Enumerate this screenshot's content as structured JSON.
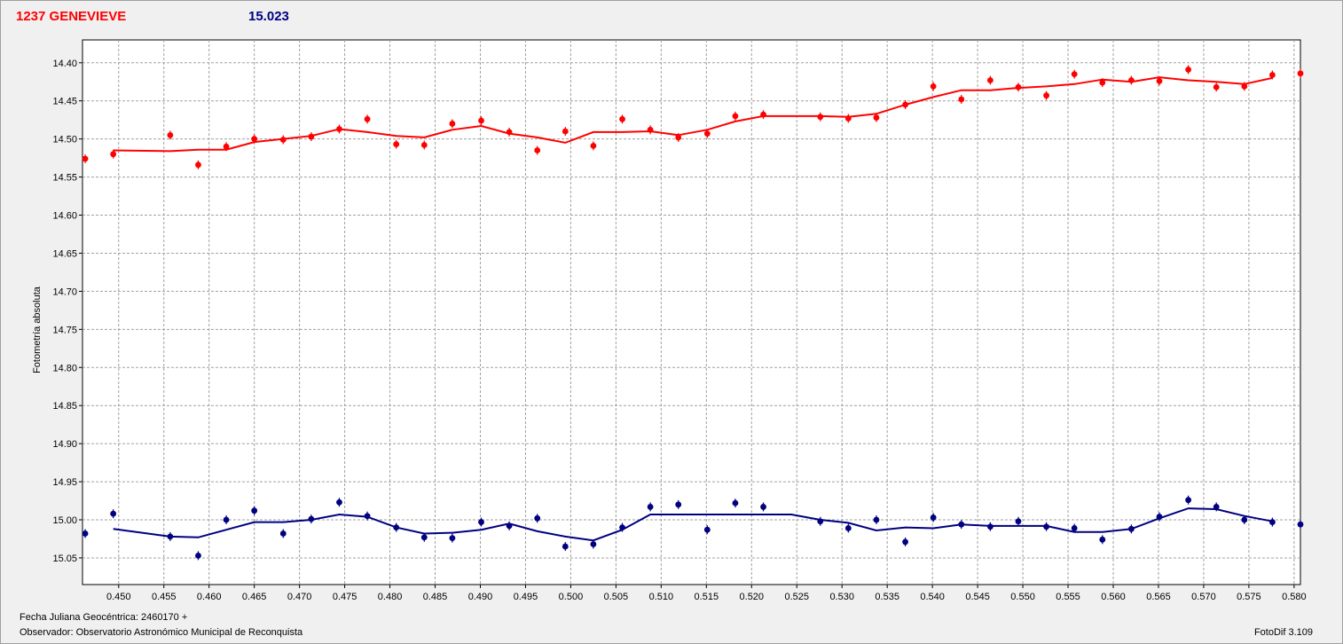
{
  "header": {
    "object_name": "1237 GENEVIEVE",
    "reference_mag": "15.023"
  },
  "footer": {
    "date_label": "Fecha Juliana Geocéntrica: 2460170 +",
    "observer": "Observador: Observatorio Astronómico Municipal de Reconquista",
    "software": "FotoDif 3.109"
  },
  "colors": {
    "series_red": "#ff0000",
    "series_blue": "#000080",
    "grid": "#a0a0a0",
    "plot_bg": "#ffffff"
  },
  "chart_data": {
    "type": "scatter",
    "ylabel": "Fotometría absoluta",
    "xlabel": "",
    "xlim": [
      0.446,
      0.5807
    ],
    "ylim": [
      14.37,
      15.085
    ],
    "y_inverted": true,
    "grid": true,
    "x_ticks": [
      "0.450",
      "0.455",
      "0.460",
      "0.465",
      "0.470",
      "0.475",
      "0.480",
      "0.485",
      "0.490",
      "0.495",
      "0.500",
      "0.505",
      "0.510",
      "0.515",
      "0.520",
      "0.525",
      "0.530",
      "0.535",
      "0.540",
      "0.545",
      "0.550",
      "0.555",
      "0.560",
      "0.565",
      "0.570",
      "0.575",
      "0.580"
    ],
    "y_ticks": [
      "14.40",
      "14.45",
      "14.50",
      "14.55",
      "14.60",
      "14.65",
      "14.70",
      "14.75",
      "14.80",
      "14.85",
      "14.90",
      "14.95",
      "15.00",
      "15.05"
    ],
    "series": [
      {
        "color": "#ff0000",
        "points": [
          [
            0.4463,
            14.526
          ],
          [
            0.4494,
            14.52
          ],
          [
            0.4557,
            14.495
          ],
          [
            0.4588,
            14.534
          ],
          [
            0.4619,
            14.51
          ],
          [
            0.465,
            14.5
          ],
          [
            0.4682,
            14.501
          ],
          [
            0.4713,
            14.497
          ],
          [
            0.4744,
            14.487
          ],
          [
            0.4775,
            14.474
          ],
          [
            0.4807,
            14.507
          ],
          [
            0.4838,
            14.508
          ],
          [
            0.4869,
            14.48
          ],
          [
            0.4901,
            14.476
          ],
          [
            0.4932,
            14.491
          ],
          [
            0.4963,
            14.515
          ],
          [
            0.4994,
            14.49
          ],
          [
            0.5025,
            14.509
          ],
          [
            0.5057,
            14.474
          ],
          [
            0.5088,
            14.488
          ],
          [
            0.5119,
            14.498
          ],
          [
            0.5151,
            14.493
          ],
          [
            0.5182,
            14.47
          ],
          [
            0.5213,
            14.468
          ],
          [
            0.5276,
            14.471
          ],
          [
            0.5307,
            14.473
          ],
          [
            0.5338,
            14.472
          ],
          [
            0.537,
            14.455
          ],
          [
            0.5401,
            14.431
          ],
          [
            0.5432,
            14.448
          ],
          [
            0.5464,
            14.423
          ],
          [
            0.5495,
            14.432
          ],
          [
            0.5526,
            14.443
          ],
          [
            0.5557,
            14.415
          ],
          [
            0.5588,
            14.426
          ],
          [
            0.562,
            14.423
          ],
          [
            0.5651,
            14.424
          ],
          [
            0.5683,
            14.409
          ],
          [
            0.5714,
            14.432
          ],
          [
            0.5745,
            14.431
          ],
          [
            0.5776,
            14.416
          ],
          [
            0.5807,
            14.414
          ]
        ],
        "fit": [
          [
            0.4494,
            14.515
          ],
          [
            0.4557,
            14.516
          ],
          [
            0.4588,
            14.514
          ],
          [
            0.4619,
            14.514
          ],
          [
            0.465,
            14.504
          ],
          [
            0.4682,
            14.5
          ],
          [
            0.4713,
            14.496
          ],
          [
            0.4744,
            14.487
          ],
          [
            0.4775,
            14.491
          ],
          [
            0.4807,
            14.496
          ],
          [
            0.4838,
            14.498
          ],
          [
            0.4869,
            14.488
          ],
          [
            0.4901,
            14.483
          ],
          [
            0.4932,
            14.493
          ],
          [
            0.4963,
            14.498
          ],
          [
            0.4994,
            14.505
          ],
          [
            0.5025,
            14.491
          ],
          [
            0.5057,
            14.491
          ],
          [
            0.5088,
            14.49
          ],
          [
            0.5119,
            14.495
          ],
          [
            0.5151,
            14.488
          ],
          [
            0.5182,
            14.477
          ],
          [
            0.5213,
            14.47
          ],
          [
            0.5276,
            14.47
          ],
          [
            0.5307,
            14.471
          ],
          [
            0.5338,
            14.467
          ],
          [
            0.537,
            14.455
          ],
          [
            0.5401,
            14.445
          ],
          [
            0.5432,
            14.436
          ],
          [
            0.5464,
            14.436
          ],
          [
            0.5495,
            14.433
          ],
          [
            0.5526,
            14.431
          ],
          [
            0.5557,
            14.428
          ],
          [
            0.5588,
            14.422
          ],
          [
            0.562,
            14.425
          ],
          [
            0.5651,
            14.419
          ],
          [
            0.5683,
            14.423
          ],
          [
            0.5714,
            14.425
          ],
          [
            0.5745,
            14.428
          ],
          [
            0.5776,
            14.42
          ]
        ]
      },
      {
        "color": "#000080",
        "points": [
          [
            0.4463,
            15.018
          ],
          [
            0.4494,
            14.992
          ],
          [
            0.4557,
            15.022
          ],
          [
            0.4588,
            15.047
          ],
          [
            0.4619,
            15.0
          ],
          [
            0.465,
            14.988
          ],
          [
            0.4682,
            15.018
          ],
          [
            0.4713,
            14.999
          ],
          [
            0.4744,
            14.977
          ],
          [
            0.4775,
            14.995
          ],
          [
            0.4807,
            15.01
          ],
          [
            0.4838,
            15.023
          ],
          [
            0.4869,
            15.024
          ],
          [
            0.4901,
            15.003
          ],
          [
            0.4932,
            15.008
          ],
          [
            0.4963,
            14.998
          ],
          [
            0.4994,
            15.035
          ],
          [
            0.5025,
            15.032
          ],
          [
            0.5057,
            15.01
          ],
          [
            0.5088,
            14.983
          ],
          [
            0.5119,
            14.98
          ],
          [
            0.5151,
            15.013
          ],
          [
            0.5182,
            14.978
          ],
          [
            0.5213,
            14.983
          ],
          [
            0.5276,
            15.002
          ],
          [
            0.5307,
            15.011
          ],
          [
            0.5338,
            15.0
          ],
          [
            0.537,
            15.029
          ],
          [
            0.5401,
            14.997
          ],
          [
            0.5432,
            15.006
          ],
          [
            0.5464,
            15.009
          ],
          [
            0.5495,
            15.002
          ],
          [
            0.5526,
            15.009
          ],
          [
            0.5557,
            15.011
          ],
          [
            0.5588,
            15.026
          ],
          [
            0.562,
            15.012
          ],
          [
            0.5651,
            14.996
          ],
          [
            0.5683,
            14.974
          ],
          [
            0.5714,
            14.983
          ],
          [
            0.5745,
            15.0
          ],
          [
            0.5776,
            15.003
          ],
          [
            0.5807,
            15.006
          ]
        ],
        "fit": [
          [
            0.4494,
            15.012
          ],
          [
            0.4557,
            15.022
          ],
          [
            0.4588,
            15.023
          ],
          [
            0.4619,
            15.013
          ],
          [
            0.465,
            15.003
          ],
          [
            0.4682,
            15.003
          ],
          [
            0.4713,
            15.0
          ],
          [
            0.4744,
            14.993
          ],
          [
            0.4775,
            14.996
          ],
          [
            0.4807,
            15.01
          ],
          [
            0.4838,
            15.018
          ],
          [
            0.4869,
            15.017
          ],
          [
            0.4901,
            15.013
          ],
          [
            0.4932,
            15.005
          ],
          [
            0.4963,
            15.015
          ],
          [
            0.4994,
            15.022
          ],
          [
            0.5025,
            15.027
          ],
          [
            0.5057,
            15.013
          ],
          [
            0.5088,
            14.993
          ],
          [
            0.5119,
            14.993
          ],
          [
            0.5151,
            14.993
          ],
          [
            0.5182,
            14.993
          ],
          [
            0.5213,
            14.993
          ],
          [
            0.5244,
            14.993
          ],
          [
            0.5276,
            15.0
          ],
          [
            0.5307,
            15.004
          ],
          [
            0.5338,
            15.014
          ],
          [
            0.537,
            15.01
          ],
          [
            0.5401,
            15.011
          ],
          [
            0.5432,
            15.006
          ],
          [
            0.5464,
            15.008
          ],
          [
            0.5495,
            15.008
          ],
          [
            0.5526,
            15.008
          ],
          [
            0.5557,
            15.016
          ],
          [
            0.5588,
            15.016
          ],
          [
            0.562,
            15.012
          ],
          [
            0.5651,
            14.998
          ],
          [
            0.5683,
            14.985
          ],
          [
            0.5714,
            14.986
          ],
          [
            0.5745,
            14.995
          ],
          [
            0.5776,
            15.002
          ]
        ]
      }
    ]
  }
}
